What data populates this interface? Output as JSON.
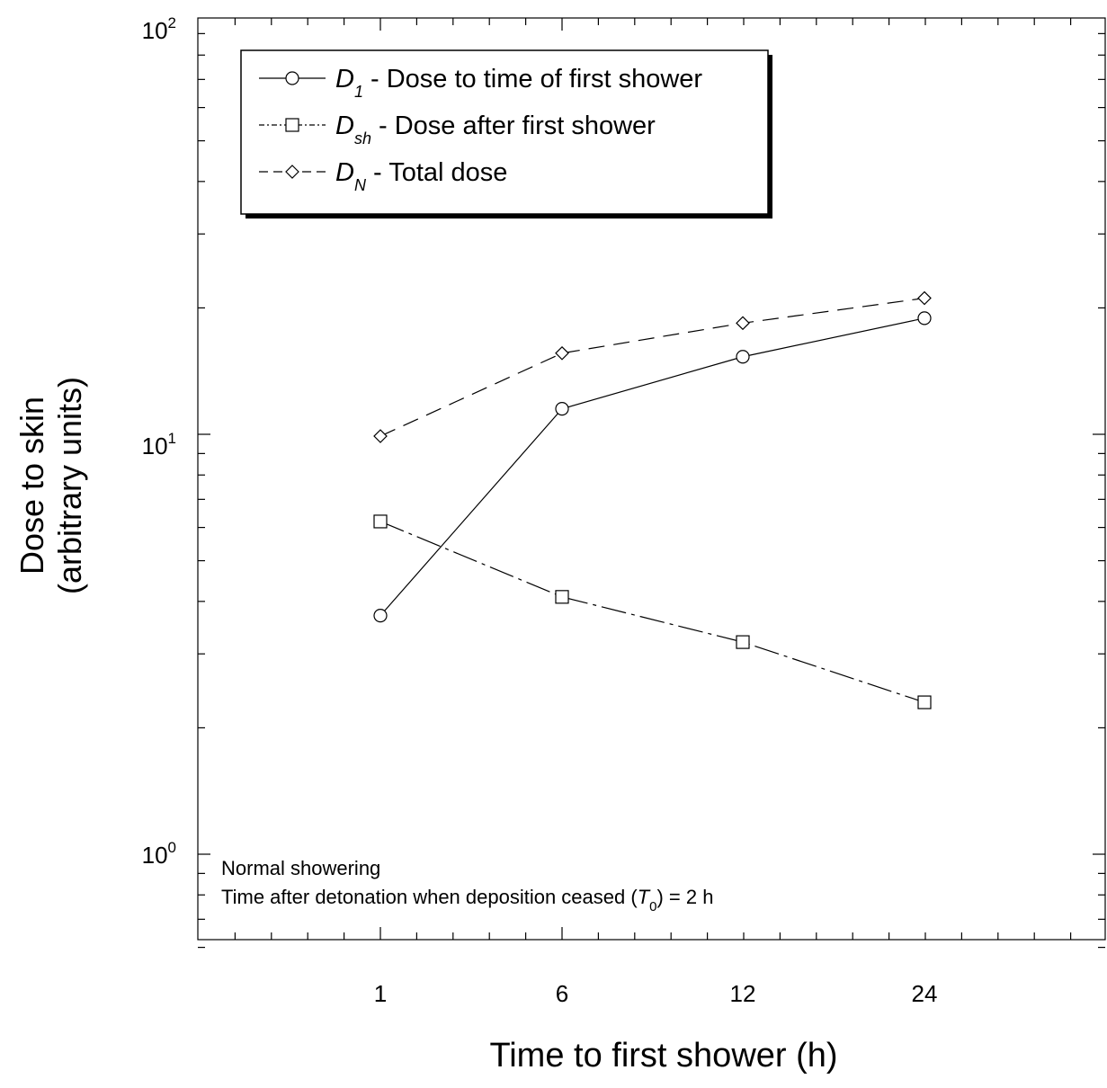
{
  "chart_data": {
    "type": "line",
    "xlabel": "Time to first shower (h)",
    "ylabel_line1": "Dose to skin",
    "ylabel_line2": "(arbitrary units)",
    "y_scale": "log",
    "ylim": [
      0.6,
      100
    ],
    "y_ticks": [
      {
        "base": "10",
        "exp": "0",
        "value": 1
      },
      {
        "base": "10",
        "exp": "1",
        "value": 10
      },
      {
        "base": "10",
        "exp": "2",
        "value": 100
      }
    ],
    "categories": [
      "1",
      "6",
      "12",
      "24"
    ],
    "series": [
      {
        "key": "D1",
        "symbol": "D",
        "subscript": "1",
        "desc": " - Dose to time of first shower",
        "marker": "circle",
        "dash": "",
        "values": [
          3.7,
          11.5,
          15.3,
          18.9
        ]
      },
      {
        "key": "Dsh",
        "symbol": "D",
        "subscript": "sh",
        "desc": " - Dose after first shower",
        "marker": "square",
        "dash": "28 6 4 6",
        "values": [
          6.2,
          4.1,
          3.2,
          2.3
        ]
      },
      {
        "key": "DN",
        "symbol": "D",
        "subscript": "N",
        "desc": " - Total dose",
        "marker": "diamond",
        "dash": "18 10",
        "values": [
          9.9,
          15.6,
          18.4,
          21.1
        ]
      }
    ],
    "legend_position": "top-left",
    "grid": false,
    "annotations": {
      "line1": "Normal showering",
      "line2_prefix": "Time after detonation when deposition ceased (",
      "line2_symbol": "T",
      "line2_subscript": "0",
      "line2_suffix": ") = 2 h"
    }
  }
}
